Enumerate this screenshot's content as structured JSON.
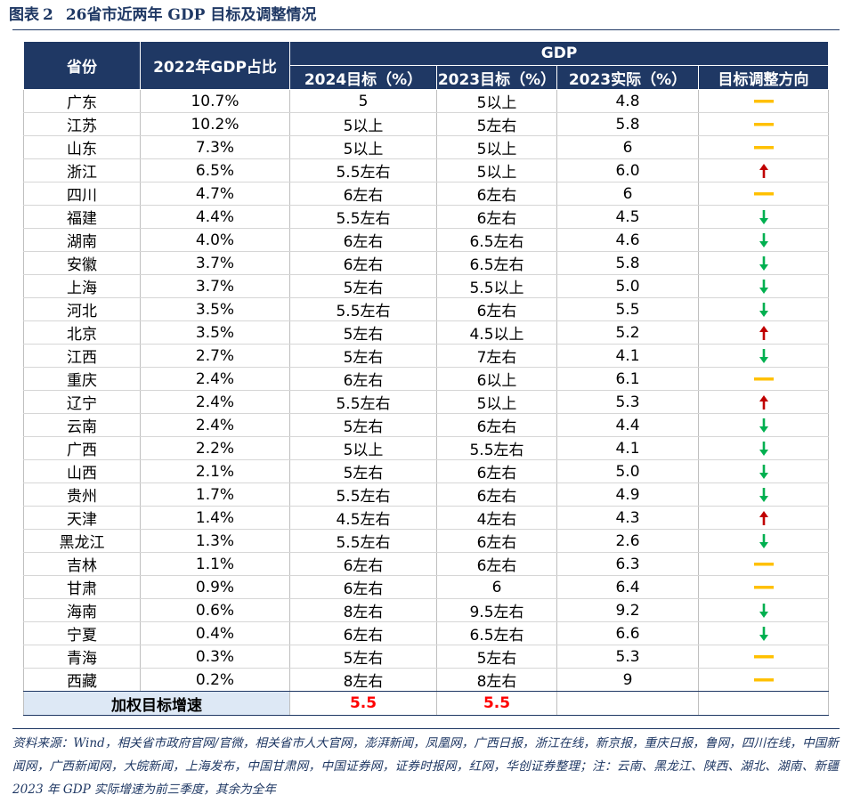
{
  "figure": {
    "label": "图表",
    "number": "2",
    "title": "26省市近两年 GDP 目标及调整情况"
  },
  "table": {
    "headers": {
      "province": "省份",
      "share": "2022年GDP占比",
      "gdp_group": "GDP",
      "target_2024": "2024目标（%）",
      "target_2023": "2023目标（%）",
      "actual_2023": "2023实际（%）",
      "direction": "目标调整方向"
    },
    "rows": [
      {
        "province": "广东",
        "share": "10.7%",
        "target_2024": "5",
        "target_2023": "5以上",
        "actual_2023": "4.8",
        "direction": "flat"
      },
      {
        "province": "江苏",
        "share": "10.2%",
        "target_2024": "5以上",
        "target_2023": "5左右",
        "actual_2023": "5.8",
        "direction": "flat"
      },
      {
        "province": "山东",
        "share": "7.3%",
        "target_2024": "5以上",
        "target_2023": "5以上",
        "actual_2023": "6",
        "direction": "flat"
      },
      {
        "province": "浙江",
        "share": "6.5%",
        "target_2024": "5.5左右",
        "target_2023": "5以上",
        "actual_2023": "6.0",
        "direction": "up"
      },
      {
        "province": "四川",
        "share": "4.7%",
        "target_2024": "6左右",
        "target_2023": "6左右",
        "actual_2023": "6",
        "direction": "flat"
      },
      {
        "province": "福建",
        "share": "4.4%",
        "target_2024": "5.5左右",
        "target_2023": "6左右",
        "actual_2023": "4.5",
        "direction": "down"
      },
      {
        "province": "湖南",
        "share": "4.0%",
        "target_2024": "6左右",
        "target_2023": "6.5左右",
        "actual_2023": "4.6",
        "direction": "down"
      },
      {
        "province": "安徽",
        "share": "3.7%",
        "target_2024": "6左右",
        "target_2023": "6.5左右",
        "actual_2023": "5.8",
        "direction": "down"
      },
      {
        "province": "上海",
        "share": "3.7%",
        "target_2024": "5左右",
        "target_2023": "5.5以上",
        "actual_2023": "5.0",
        "direction": "down"
      },
      {
        "province": "河北",
        "share": "3.5%",
        "target_2024": "5.5左右",
        "target_2023": "6左右",
        "actual_2023": "5.5",
        "direction": "down"
      },
      {
        "province": "北京",
        "share": "3.5%",
        "target_2024": "5左右",
        "target_2023": "4.5以上",
        "actual_2023": "5.2",
        "direction": "up"
      },
      {
        "province": "江西",
        "share": "2.7%",
        "target_2024": "5左右",
        "target_2023": "7左右",
        "actual_2023": "4.1",
        "direction": "down"
      },
      {
        "province": "重庆",
        "share": "2.4%",
        "target_2024": "6左右",
        "target_2023": "6以上",
        "actual_2023": "6.1",
        "direction": "flat"
      },
      {
        "province": "辽宁",
        "share": "2.4%",
        "target_2024": "5.5左右",
        "target_2023": "5以上",
        "actual_2023": "5.3",
        "direction": "up"
      },
      {
        "province": "云南",
        "share": "2.4%",
        "target_2024": "5左右",
        "target_2023": "6左右",
        "actual_2023": "4.4",
        "direction": "down"
      },
      {
        "province": "广西",
        "share": "2.2%",
        "target_2024": "5以上",
        "target_2023": "5.5左右",
        "actual_2023": "4.1",
        "direction": "down"
      },
      {
        "province": "山西",
        "share": "2.1%",
        "target_2024": "5左右",
        "target_2023": "6左右",
        "actual_2023": "5.0",
        "direction": "down"
      },
      {
        "province": "贵州",
        "share": "1.7%",
        "target_2024": "5.5左右",
        "target_2023": "6左右",
        "actual_2023": "4.9",
        "direction": "down"
      },
      {
        "province": "天津",
        "share": "1.4%",
        "target_2024": "4.5左右",
        "target_2023": "4左右",
        "actual_2023": "4.3",
        "direction": "up"
      },
      {
        "province": "黑龙江",
        "share": "1.3%",
        "target_2024": "5.5左右",
        "target_2023": "6左右",
        "actual_2023": "2.6",
        "direction": "down"
      },
      {
        "province": "吉林",
        "share": "1.1%",
        "target_2024": "6左右",
        "target_2023": "6左右",
        "actual_2023": "6.3",
        "direction": "flat"
      },
      {
        "province": "甘肃",
        "share": "0.9%",
        "target_2024": "6左右",
        "target_2023": "6",
        "actual_2023": "6.4",
        "direction": "flat"
      },
      {
        "province": "海南",
        "share": "0.6%",
        "target_2024": "8左右",
        "target_2023": "9.5左右",
        "actual_2023": "9.2",
        "direction": "down"
      },
      {
        "province": "宁夏",
        "share": "0.4%",
        "target_2024": "6左右",
        "target_2023": "6.5左右",
        "actual_2023": "6.6",
        "direction": "down"
      },
      {
        "province": "青海",
        "share": "0.3%",
        "target_2024": "5左右",
        "target_2023": "5左右",
        "actual_2023": "5.3",
        "direction": "flat"
      },
      {
        "province": "西藏",
        "share": "0.2%",
        "target_2024": "8左右",
        "target_2023": "8左右",
        "actual_2023": "9",
        "direction": "flat"
      }
    ],
    "footer": {
      "label": "加权目标增速",
      "target_2024": "5.5",
      "target_2023": "5.5"
    }
  },
  "source": "资料来源：Wind，相关省市政府官网/官微，相关省市人大官网，澎湃新闻，凤凰网，广西日报，浙江在线，新京报，重庆日报，鲁网，四川在线，中国新闻网，广西新闻网，大皖新闻，上海发布，中国甘肃网，中国证券网，证券时报网，红网，华创证券整理；注：云南、黑龙江、陕西、湖北、湖南、新疆2023 年 GDP 实际增速为前三季度，其余为全年",
  "colors": {
    "header_bg": "#1f3864",
    "footer_label_bg": "#dde8f5",
    "up_arrow": "#c00000",
    "down_arrow": "#00b050",
    "flat_dash": "#ffc000",
    "weighted_value": "#ff0000"
  },
  "icons": {
    "up": "arrow-up-icon",
    "down": "arrow-down-icon",
    "flat": "dash-icon"
  }
}
